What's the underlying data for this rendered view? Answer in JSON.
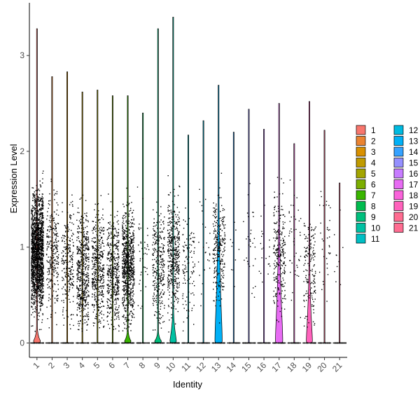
{
  "chart_data": {
    "type": "violin",
    "title": "",
    "xlabel": "Identity",
    "ylabel": "Expression Level",
    "ylim": [
      -0.15,
      3.55
    ],
    "yticks": [
      0,
      1,
      2,
      3
    ],
    "categories": [
      "1",
      "2",
      "3",
      "4",
      "5",
      "6",
      "7",
      "8",
      "9",
      "10",
      "11",
      "12",
      "13",
      "14",
      "15",
      "16",
      "17",
      "18",
      "19",
      "20",
      "21"
    ],
    "colors": [
      "#F8766D",
      "#EA8331",
      "#D89000",
      "#C09B00",
      "#A3A500",
      "#7CAE00",
      "#39B600",
      "#00BB4E",
      "#00BF7D",
      "#00C1A3",
      "#00BFC4",
      "#00BAE0",
      "#00B0F6",
      "#35A2FF",
      "#9590FF",
      "#C77CFF",
      "#E76BF3",
      "#FA62DB",
      "#FF62BC",
      "#FF6C91",
      "#FF6C91"
    ],
    "max_expression": [
      3.28,
      2.78,
      2.83,
      2.62,
      2.64,
      2.58,
      2.58,
      2.4,
      3.28,
      3.4,
      2.17,
      2.32,
      2.69,
      2.2,
      2.44,
      2.23,
      2.5,
      2.08,
      2.52,
      2.22,
      1.67
    ],
    "violin_half_width": [
      0.45,
      0.03,
      0.03,
      0.03,
      0.03,
      0.03,
      0.42,
      0.03,
      0.45,
      0.42,
      0.03,
      0.03,
      0.48,
      0.03,
      0.03,
      0.03,
      0.48,
      0.03,
      0.4,
      0.03,
      0.03
    ],
    "violin_top": [
      0.18,
      0.01,
      0.01,
      0.01,
      0.01,
      0.01,
      0.16,
      0.01,
      0.14,
      0.4,
      0.01,
      0.01,
      1.72,
      0.01,
      0.01,
      0.01,
      1.52,
      0.01,
      0.95,
      0.01,
      0.01
    ],
    "expressing_cells": [
      1800,
      260,
      240,
      500,
      420,
      430,
      780,
      40,
      300,
      420,
      110,
      25,
      260,
      10,
      30,
      20,
      250,
      45,
      160,
      35,
      10
    ],
    "expression_center": [
      0.95,
      0.95,
      0.85,
      0.75,
      0.8,
      0.75,
      0.8,
      0.85,
      0.8,
      0.9,
      0.8,
      1.1,
      1.0,
      1.0,
      1.0,
      1.0,
      0.9,
      1.0,
      0.8,
      1.1,
      0.9
    ],
    "legend": {
      "placement": "right",
      "columns": 2,
      "labels": [
        "1",
        "2",
        "3",
        "4",
        "5",
        "6",
        "7",
        "8",
        "9",
        "10",
        "11",
        "12",
        "13",
        "14",
        "15",
        "16",
        "17",
        "18",
        "19",
        "20",
        "21"
      ]
    }
  }
}
